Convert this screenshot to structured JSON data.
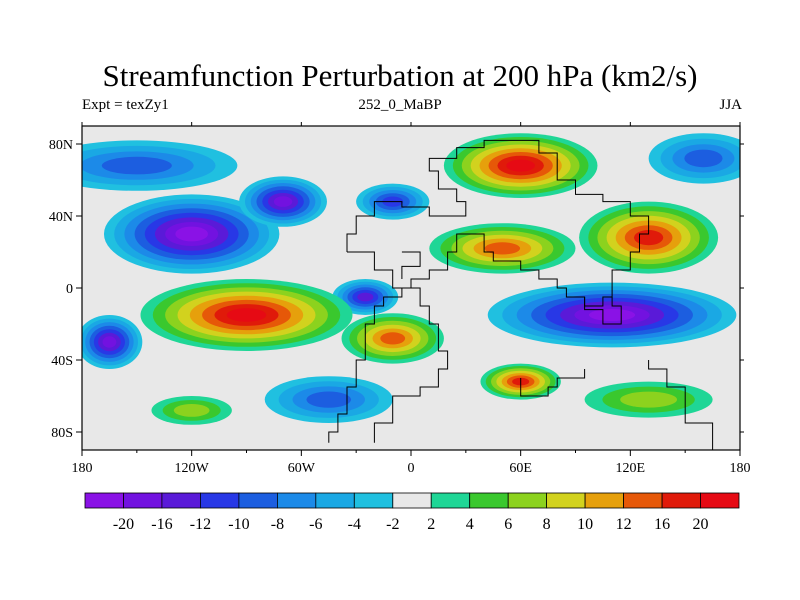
{
  "chart_data": {
    "type": "contour-map",
    "title": "Streamfunction Perturbation at 200 hPa (km2/s)",
    "left_string": "Expt = texZy1",
    "center_string": "252_0_MaBP",
    "right_string": "JJA",
    "x_ticks": [
      "180",
      "120W",
      "60W",
      "0",
      "60E",
      "120E",
      "180"
    ],
    "x_tick_values": [
      -180,
      -120,
      -60,
      0,
      60,
      120,
      180
    ],
    "y_ticks": [
      "80S",
      "40S",
      "0",
      "40N",
      "80N"
    ],
    "y_tick_values": [
      -80,
      -40,
      0,
      40,
      80
    ],
    "xlim": [
      -180,
      180
    ],
    "ylim": [
      -90,
      90
    ],
    "colorbar": {
      "labels": [
        "-20",
        "-16",
        "-12",
        "-10",
        "-8",
        "-6",
        "-4",
        "-2",
        "2",
        "4",
        "6",
        "8",
        "10",
        "12",
        "16",
        "20"
      ],
      "levels": [
        -20,
        -16,
        -12,
        -10,
        -8,
        -6,
        -4,
        -2,
        2,
        4,
        6,
        8,
        10,
        12,
        16,
        20
      ],
      "colors": [
        "#8a12e6",
        "#7212e0",
        "#5a1ad8",
        "#2838e6",
        "#1c5ee0",
        "#1c8ae8",
        "#1aa8e4",
        "#20c0e0",
        "#e8e8e8",
        "#1fd696",
        "#3ac82e",
        "#8cd21e",
        "#d2d21e",
        "#e6a00c",
        "#e65808",
        "#e01a0a",
        "#e60a14"
      ]
    },
    "field_blobs": [
      {
        "lon": -120,
        "lat": 30,
        "rlon": 48,
        "rlat": 22,
        "value": -18
      },
      {
        "lon": -150,
        "lat": 68,
        "rlon": 55,
        "rlat": 14,
        "value": -6
      },
      {
        "lon": -70,
        "lat": 48,
        "rlon": 24,
        "rlat": 14,
        "value": -14
      },
      {
        "lon": -10,
        "lat": 48,
        "rlon": 20,
        "rlat": 10,
        "value": -8
      },
      {
        "lon": -25,
        "lat": -5,
        "rlon": 18,
        "rlat": 10,
        "value": -12
      },
      {
        "lon": 60,
        "lat": 68,
        "rlon": 42,
        "rlat": 18,
        "value": 20
      },
      {
        "lon": 130,
        "lat": 28,
        "rlon": 38,
        "rlat": 20,
        "value": 16
      },
      {
        "lon": 50,
        "lat": 22,
        "rlon": 40,
        "rlat": 14,
        "value": 12
      },
      {
        "lon": 160,
        "lat": 72,
        "rlon": 30,
        "rlat": 14,
        "value": -6
      },
      {
        "lon": -90,
        "lat": -15,
        "rlon": 58,
        "rlat": 20,
        "value": 22
      },
      {
        "lon": -10,
        "lat": -28,
        "rlon": 28,
        "rlat": 14,
        "value": 12
      },
      {
        "lon": -165,
        "lat": -30,
        "rlon": 18,
        "rlat": 15,
        "value": -16
      },
      {
        "lon": 110,
        "lat": -15,
        "rlon": 68,
        "rlat": 18,
        "value": -22
      },
      {
        "lon": 60,
        "lat": -52,
        "rlon": 22,
        "rlat": 10,
        "value": 14
      },
      {
        "lon": -45,
        "lat": -62,
        "rlon": 35,
        "rlat": 13,
        "value": -6
      },
      {
        "lon": -120,
        "lat": -68,
        "rlon": 22,
        "rlat": 8,
        "value": 4
      },
      {
        "lon": 130,
        "lat": -62,
        "rlon": 35,
        "rlat": 10,
        "value": 5
      }
    ]
  }
}
